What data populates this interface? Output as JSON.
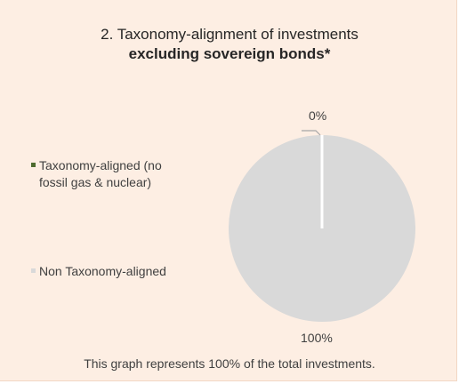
{
  "chart_data": {
    "type": "pie",
    "title_line1": "2. Taxonomy-alignment of investments",
    "title_line2": "excluding sovereign bonds*",
    "categories": [
      "Taxonomy-aligned (no fossil gas & nuclear)",
      "Non Taxonomy-aligned"
    ],
    "values": [
      0,
      100
    ],
    "data_labels": [
      "0%",
      "100%"
    ],
    "colors": [
      "#4e6b2f",
      "#d9d9d9"
    ],
    "legend_placement": "left"
  },
  "legend": {
    "item1_line1": "Taxonomy-aligned (no",
    "item1_line2": "fossil gas & nuclear)",
    "item2": "Non Taxonomy-aligned"
  },
  "footer": "This graph represents 100% of the total investments."
}
